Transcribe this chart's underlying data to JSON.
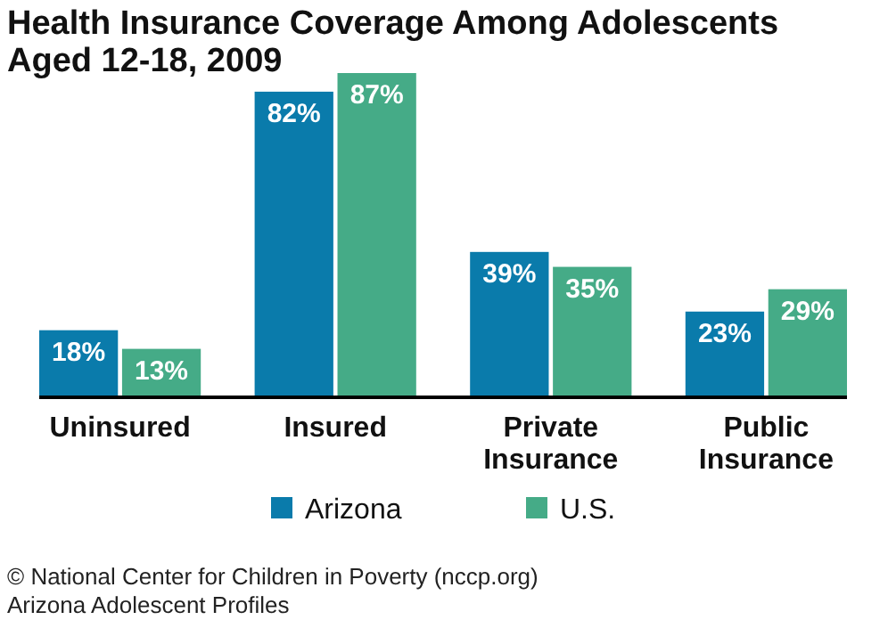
{
  "chart_data": {
    "type": "bar",
    "title": "Health Insurance Coverage Among Adolescents Aged 12-18, 2009",
    "categories": [
      "Uninsured",
      "Insured",
      "Private Insurance",
      "Public Insurance"
    ],
    "series": [
      {
        "name": "Arizona",
        "color": "#0a7bab",
        "values": [
          18,
          82,
          39,
          23
        ],
        "value_labels": [
          "18%",
          "82%",
          "39%",
          "23%"
        ]
      },
      {
        "name": "U.S.",
        "color": "#45ab87",
        "values": [
          13,
          87,
          35,
          29
        ],
        "value_labels": [
          "13%",
          "87%",
          "35%",
          "29%"
        ]
      }
    ],
    "legend": "bottom",
    "annotations": [
      "© National Center for Children in Poverty (nccp.org)",
      "Arizona Adolescent Profiles"
    ]
  }
}
